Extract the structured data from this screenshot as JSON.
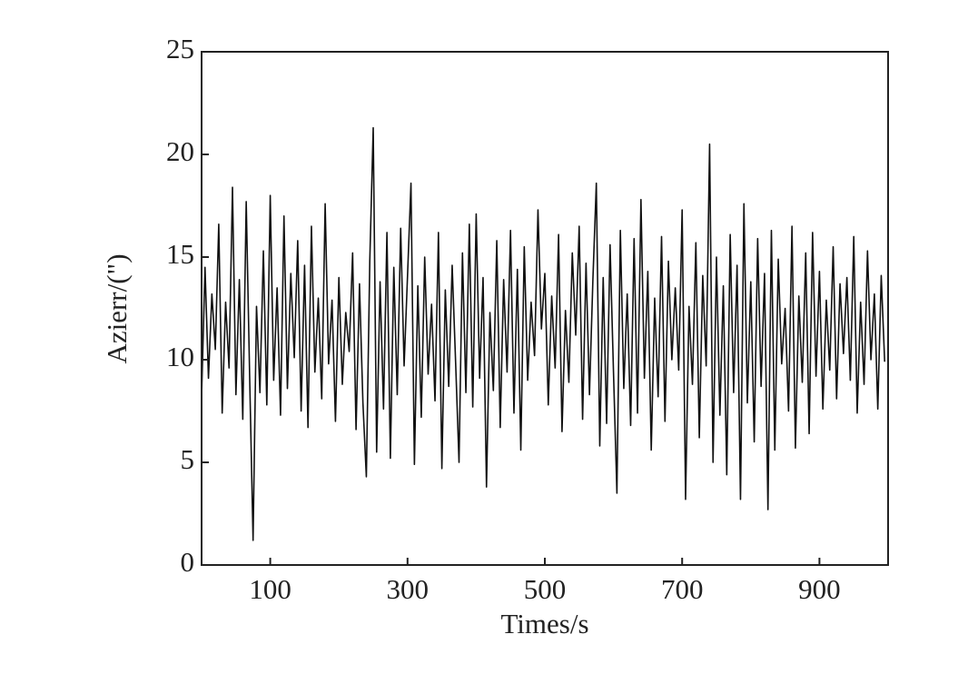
{
  "chart_data": {
    "type": "line",
    "xlabel": "Times/s",
    "ylabel": "Azierr/(\")",
    "x": [
      0,
      5,
      10,
      15,
      20,
      25,
      30,
      35,
      40,
      45,
      50,
      55,
      60,
      65,
      70,
      75,
      80,
      85,
      90,
      95,
      100,
      105,
      110,
      115,
      120,
      125,
      130,
      135,
      140,
      145,
      150,
      155,
      160,
      165,
      170,
      175,
      180,
      185,
      190,
      195,
      200,
      205,
      210,
      215,
      220,
      225,
      230,
      235,
      240,
      245,
      250,
      255,
      260,
      265,
      270,
      275,
      280,
      285,
      290,
      295,
      300,
      305,
      310,
      315,
      320,
      325,
      330,
      335,
      340,
      345,
      350,
      355,
      360,
      365,
      370,
      375,
      380,
      385,
      390,
      395,
      400,
      405,
      410,
      415,
      420,
      425,
      430,
      435,
      440,
      445,
      450,
      455,
      460,
      465,
      470,
      475,
      480,
      485,
      490,
      495,
      500,
      505,
      510,
      515,
      520,
      525,
      530,
      535,
      540,
      545,
      550,
      555,
      560,
      565,
      570,
      575,
      580,
      585,
      590,
      595,
      600,
      605,
      610,
      615,
      620,
      625,
      630,
      635,
      640,
      645,
      650,
      655,
      660,
      665,
      670,
      675,
      680,
      685,
      690,
      695,
      700,
      705,
      710,
      715,
      720,
      725,
      730,
      735,
      740,
      745,
      750,
      755,
      760,
      765,
      770,
      775,
      780,
      785,
      790,
      795,
      800,
      805,
      810,
      815,
      820,
      825,
      830,
      835,
      840,
      845,
      850,
      855,
      860,
      865,
      870,
      875,
      880,
      885,
      890,
      895,
      900,
      905,
      910,
      915,
      920,
      925,
      930,
      935,
      940,
      945,
      950,
      955,
      960,
      965,
      970,
      975,
      980,
      985,
      990,
      995
    ],
    "series": [
      {
        "color": "#111111",
        "values": [
          8.2,
          14.5,
          9.1,
          13.2,
          10.5,
          16.6,
          7.4,
          12.8,
          9.6,
          18.4,
          8.3,
          13.9,
          7.1,
          17.7,
          9.2,
          1.2,
          12.6,
          8.4,
          15.3,
          7.8,
          18.0,
          9.0,
          13.5,
          7.3,
          17.0,
          8.6,
          14.2,
          10.1,
          15.8,
          7.5,
          14.6,
          6.7,
          16.5,
          9.4,
          13.0,
          8.1,
          17.6,
          9.8,
          12.9,
          7.0,
          14.0,
          8.8,
          12.3,
          10.4,
          15.2,
          6.6,
          13.7,
          7.9,
          4.3,
          14.8,
          21.3,
          5.5,
          13.8,
          7.6,
          16.2,
          5.2,
          14.5,
          8.3,
          16.4,
          9.7,
          14.1,
          18.6,
          4.9,
          13.6,
          7.2,
          15.0,
          9.3,
          12.7,
          8.0,
          16.2,
          4.7,
          13.4,
          8.7,
          14.6,
          9.9,
          5.0,
          15.2,
          8.4,
          16.6,
          7.7,
          17.1,
          9.1,
          14.0,
          3.8,
          12.3,
          8.5,
          15.8,
          6.7,
          13.9,
          9.4,
          16.3,
          7.4,
          14.4,
          5.6,
          15.5,
          9.0,
          12.8,
          10.2,
          17.3,
          11.5,
          14.2,
          7.8,
          13.1,
          9.6,
          16.1,
          6.5,
          12.4,
          8.9,
          15.2,
          11.2,
          16.5,
          7.1,
          14.7,
          8.3,
          13.9,
          18.6,
          5.8,
          14.0,
          6.9,
          15.6,
          9.4,
          3.5,
          16.3,
          8.6,
          13.2,
          6.8,
          15.9,
          7.4,
          17.8,
          9.1,
          14.3,
          5.6,
          13.0,
          8.2,
          16.0,
          7.0,
          14.8,
          10.0,
          13.5,
          9.5,
          17.3,
          3.2,
          12.6,
          8.8,
          15.7,
          6.2,
          14.1,
          9.7,
          20.5,
          5.0,
          15.0,
          7.3,
          13.6,
          4.4,
          16.1,
          8.4,
          14.6,
          3.2,
          17.6,
          7.9,
          13.8,
          6.0,
          15.9,
          8.7,
          14.2,
          2.7,
          16.3,
          5.6,
          14.9,
          9.8,
          12.5,
          7.5,
          16.5,
          5.7,
          13.1,
          8.9,
          15.2,
          6.4,
          16.2,
          9.2,
          14.3,
          7.6,
          12.9,
          9.5,
          15.5,
          8.1,
          13.7,
          10.3,
          14.0,
          9.0,
          16.0,
          7.4,
          12.8,
          8.8,
          15.3,
          10.0,
          13.2,
          7.6,
          14.1,
          9.9
        ]
      }
    ],
    "xlim": [
      0,
      1000
    ],
    "xticks": [
      100,
      300,
      500,
      700,
      900
    ],
    "ylim": [
      0,
      25
    ],
    "yticks": [
      0,
      5,
      10,
      15,
      20,
      25
    ]
  }
}
